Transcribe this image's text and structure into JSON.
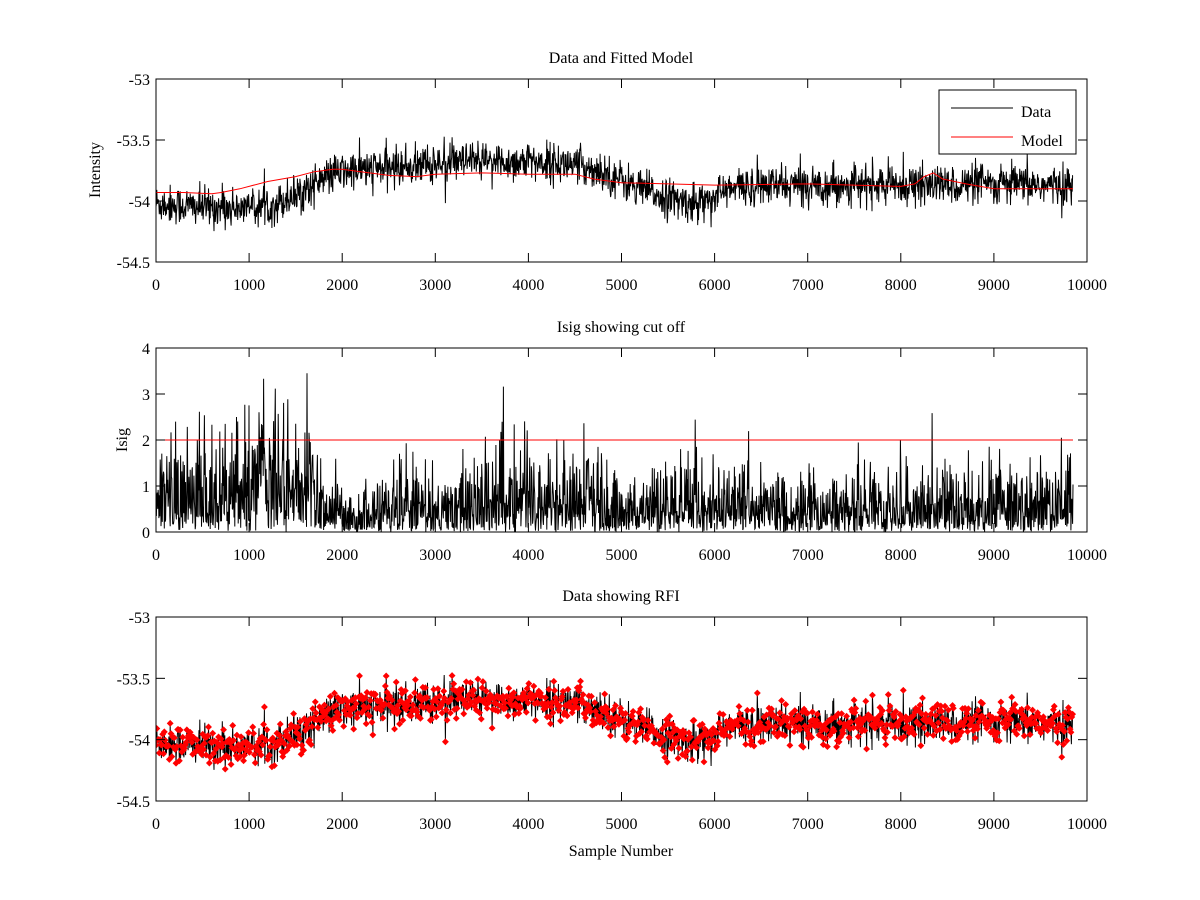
{
  "figure": {
    "background": "#ffffff"
  },
  "chart_data": [
    {
      "type": "line",
      "id": "top",
      "title": "Data and Fitted Model",
      "xlabel": "",
      "ylabel": "Intensity",
      "xlim": [
        0,
        10000
      ],
      "ylim": [
        -54.5,
        -53
      ],
      "xticks": [
        0,
        1000,
        2000,
        3000,
        4000,
        5000,
        6000,
        7000,
        8000,
        9000,
        10000
      ],
      "xtick_labels": [
        "0",
        "1000",
        "2000",
        "3000",
        "4000",
        "5000",
        "6000",
        "7000",
        "8000",
        "9000",
        "10000"
      ],
      "yticks": [
        -53,
        -53.5,
        -54,
        -54.5
      ],
      "ytick_labels": [
        "-53",
        "-53.5",
        "-54",
        "-54.5"
      ],
      "grid": false,
      "legend": {
        "placement": "top-right",
        "entries": [
          {
            "label": "Data",
            "color": "#000000"
          },
          {
            "label": "Model",
            "color": "#ff0000"
          }
        ]
      },
      "series": [
        {
          "name": "Data",
          "color": "#000000",
          "style": "noisy-line",
          "n_samples": 9850,
          "trend_x": [
            0,
            500,
            1000,
            1300,
            1600,
            1900,
            2200,
            2600,
            3000,
            3500,
            4000,
            4500,
            4800,
            5200,
            5600,
            5800,
            6000,
            6300,
            7000,
            7500,
            8000,
            8500,
            9000,
            9500,
            9850
          ],
          "trend_y": [
            -54.02,
            -54.05,
            -54.06,
            -54.02,
            -53.9,
            -53.78,
            -53.74,
            -53.72,
            -53.7,
            -53.68,
            -53.68,
            -53.7,
            -53.76,
            -53.9,
            -54.0,
            -54.02,
            -53.95,
            -53.88,
            -53.87,
            -53.87,
            -53.87,
            -53.87,
            -53.86,
            -53.87,
            -53.88
          ],
          "noise_sigma": 0.08
        },
        {
          "name": "Model",
          "color": "#ff0000",
          "style": "line",
          "x": [
            0,
            300,
            600,
            700,
            900,
            1200,
            1500,
            1700,
            1900,
            2000,
            2200,
            2500,
            2800,
            3000,
            3500,
            4000,
            4500,
            4700,
            5000,
            5500,
            6000,
            7000,
            7500,
            8000,
            8150,
            8250,
            8350,
            8450,
            8700,
            9000,
            9500,
            9850
          ],
          "y": [
            -53.93,
            -53.93,
            -53.94,
            -53.93,
            -53.9,
            -53.84,
            -53.8,
            -53.76,
            -53.74,
            -53.74,
            -53.76,
            -53.79,
            -53.8,
            -53.78,
            -53.77,
            -53.78,
            -53.78,
            -53.82,
            -53.85,
            -53.86,
            -53.87,
            -53.86,
            -53.87,
            -53.88,
            -53.86,
            -53.8,
            -53.77,
            -53.82,
            -53.86,
            -53.9,
            -53.9,
            -53.9
          ]
        }
      ]
    },
    {
      "type": "line",
      "id": "middle",
      "title": "Isig showing cut off",
      "xlabel": "",
      "ylabel": "Isig",
      "xlim": [
        0,
        10000
      ],
      "ylim": [
        0,
        4
      ],
      "xticks": [
        0,
        1000,
        2000,
        3000,
        4000,
        5000,
        6000,
        7000,
        8000,
        9000,
        10000
      ],
      "xtick_labels": [
        "0",
        "1000",
        "2000",
        "3000",
        "4000",
        "5000",
        "6000",
        "7000",
        "8000",
        "9000",
        "10000"
      ],
      "yticks": [
        0,
        1,
        2,
        3,
        4
      ],
      "ytick_labels": [
        "0",
        "1",
        "2",
        "3",
        "4"
      ],
      "grid": false,
      "series": [
        {
          "name": "Isig",
          "color": "#000000",
          "style": "abs-noise",
          "n_samples": 9850,
          "envelope_x": [
            0,
            900,
            1100,
            1400,
            1700,
            1800,
            2000,
            3000,
            3800,
            4500,
            4700,
            5000,
            5700,
            6000,
            7000,
            8000,
            9000,
            9500,
            9850
          ],
          "envelope_y": [
            0.85,
            0.9,
            1.3,
            1.5,
            1.2,
            0.7,
            0.55,
            0.65,
            0.8,
            0.75,
            0.85,
            0.6,
            0.7,
            0.65,
            0.6,
            0.6,
            0.75,
            0.7,
            0.7
          ],
          "max_value": 3.7
        },
        {
          "name": "Cut off",
          "color": "#ff0000",
          "style": "line",
          "x": [
            0,
            9850
          ],
          "y": [
            2,
            2
          ]
        }
      ]
    },
    {
      "type": "scatter",
      "id": "bottom",
      "title": "Data showing RFI",
      "xlabel": "Sample Number",
      "ylabel": "",
      "xlim": [
        0,
        10000
      ],
      "ylim": [
        -54.5,
        -53
      ],
      "xticks": [
        0,
        1000,
        2000,
        3000,
        4000,
        5000,
        6000,
        7000,
        8000,
        9000,
        10000
      ],
      "xtick_labels": [
        "0",
        "1000",
        "2000",
        "3000",
        "4000",
        "5000",
        "6000",
        "7000",
        "8000",
        "9000",
        "10000"
      ],
      "yticks": [
        -53,
        -53.5,
        -54,
        -54.5
      ],
      "ytick_labels": [
        "-53",
        "-53.5",
        "-54",
        "-54.5"
      ],
      "grid": false,
      "series": [
        {
          "name": "Data",
          "color": "#000000",
          "style": "noisy-line",
          "n_samples": 9850,
          "trend_x": [
            0,
            500,
            1000,
            1300,
            1600,
            1900,
            2200,
            2600,
            3000,
            3500,
            4000,
            4500,
            4800,
            5200,
            5600,
            5800,
            6000,
            6300,
            7000,
            7500,
            8000,
            8500,
            9000,
            9500,
            9850
          ],
          "trend_y": [
            -54.02,
            -54.05,
            -54.06,
            -54.02,
            -53.9,
            -53.78,
            -53.74,
            -53.72,
            -53.7,
            -53.68,
            -53.68,
            -53.7,
            -53.76,
            -53.9,
            -54.0,
            -54.02,
            -53.95,
            -53.88,
            -53.87,
            -53.87,
            -53.87,
            -53.87,
            -53.86,
            -53.87,
            -53.88
          ],
          "noise_sigma": 0.08
        },
        {
          "name": "RFI flagged",
          "color": "#ff0000",
          "style": "markers",
          "marker": "diamond"
        }
      ]
    }
  ]
}
